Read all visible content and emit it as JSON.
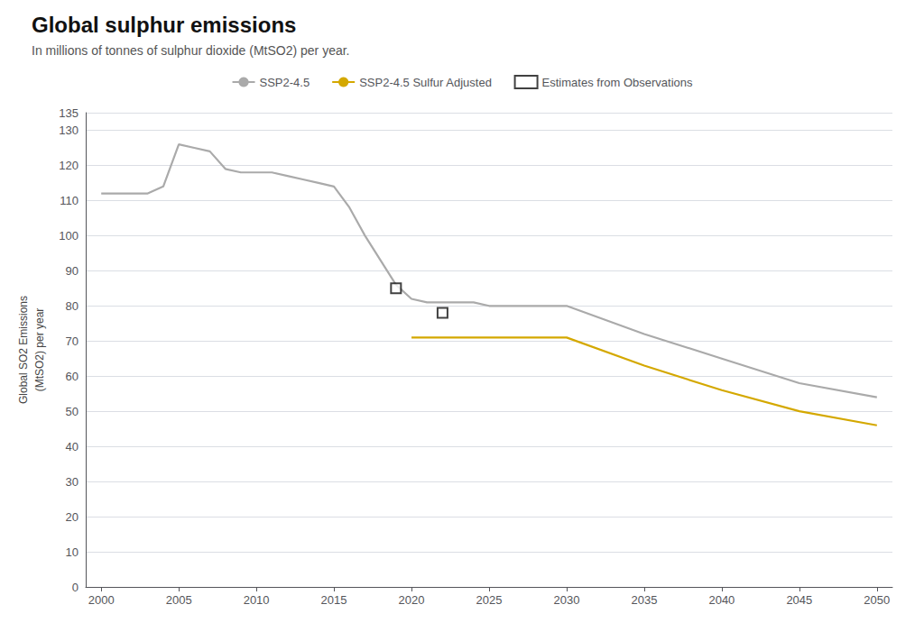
{
  "chart_data": {
    "type": "line",
    "title": "Global sulphur emissions",
    "subtitle": "In millions of tonnes of sulphur dioxide (MtSO2) per year.",
    "ylabel": "Global SO2 Emissions\n(MtSO2) per year",
    "series": [
      {
        "name": "SSP2-4.5",
        "type": "line",
        "color": "#aaaaaa",
        "x": [
          2000,
          2001,
          2002,
          2003,
          2004,
          2005,
          2006,
          2007,
          2008,
          2009,
          2010,
          2011,
          2012,
          2013,
          2014,
          2015,
          2016,
          2017,
          2018,
          2019,
          2020,
          2021,
          2022,
          2023,
          2024,
          2025,
          2026,
          2027,
          2028,
          2029,
          2030,
          2035,
          2040,
          2045,
          2050
        ],
        "values": [
          112,
          112,
          112,
          112,
          114,
          126,
          125,
          124,
          119,
          118,
          118,
          118,
          117,
          116,
          115,
          114,
          108,
          100,
          93,
          86,
          82,
          81,
          81,
          81,
          81,
          80,
          80,
          80,
          80,
          80,
          80,
          72,
          65,
          58,
          54
        ]
      },
      {
        "name": "SSP2-4.5 Sulfur Adjusted",
        "type": "line",
        "color": "#d4a800",
        "x": [
          2020,
          2021,
          2022,
          2023,
          2024,
          2025,
          2026,
          2027,
          2028,
          2029,
          2030,
          2035,
          2040,
          2045,
          2050
        ],
        "values": [
          71,
          71,
          71,
          71,
          71,
          71,
          71,
          71,
          71,
          71,
          71,
          63,
          56,
          50,
          46
        ]
      },
      {
        "name": "Estimates from Observations",
        "type": "scatter",
        "marker": "square",
        "color": "#111111",
        "x": [
          2019,
          2022
        ],
        "values": [
          85,
          78
        ]
      }
    ],
    "xlim": [
      1999,
      2051
    ],
    "xticks": [
      2000,
      2005,
      2010,
      2015,
      2020,
      2025,
      2030,
      2035,
      2040,
      2045,
      2050
    ],
    "ylim": [
      0,
      135
    ],
    "yticks": [
      0,
      10,
      20,
      30,
      40,
      50,
      60,
      70,
      80,
      90,
      100,
      110,
      120,
      130
    ],
    "grid": true,
    "legend": "top"
  }
}
